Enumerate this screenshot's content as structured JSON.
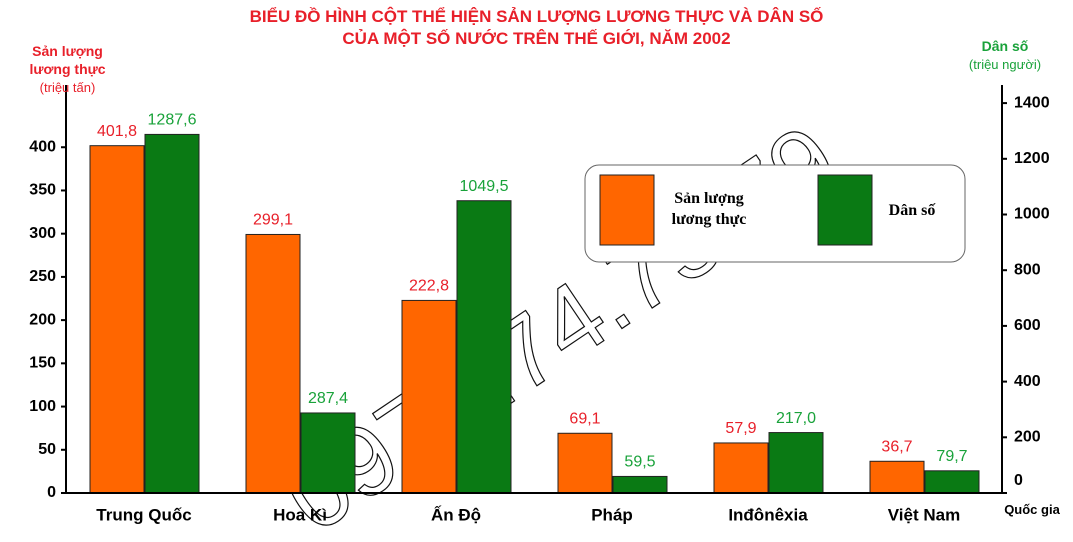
{
  "chart_data": {
    "type": "bar",
    "title": [
      "BIỂU ĐỒ HÌNH CỘT THỂ HIỆN SẢN LƯỢNG LƯƠNG THỰC VÀ DÂN SỐ",
      "CỦA MỘT SỐ NƯỚC TRÊN THẾ GIỚI, NĂM 2002"
    ],
    "y_label": "Sản lượng lương thực",
    "y_unit": "(triệu tấn)",
    "y2_label": "Dân số",
    "y2_unit": "(triệu người)",
    "x_label": "Quốc gia",
    "watermark": "0975.74.75.79",
    "categories": [
      "Trung Quốc",
      "Hoa Kì",
      "Ấn Độ",
      "Pháp",
      "Inđônêxia",
      "Việt Nam"
    ],
    "series": [
      {
        "name": "Sản lượng lương thực",
        "color": "#ff6600",
        "label_color": "#e8202a",
        "values": [
          401.8,
          299.1,
          222.8,
          69.1,
          57.9,
          36.7
        ],
        "value_labels": [
          "401,8",
          "299,1",
          "222,8",
          "69,1",
          "57,9",
          "36,7"
        ]
      },
      {
        "name": "Dân số",
        "color": "#0a7a14",
        "label_color": "#19a23a",
        "axis": "y2",
        "values": [
          1287.6,
          287.4,
          1049.5,
          59.5,
          217.0,
          79.7
        ],
        "value_labels": [
          "1287,6",
          "287,4",
          "1049,5",
          "59,5",
          "217,0",
          "79,7"
        ]
      }
    ],
    "ylim": [
      0,
      472
    ],
    "yticks": [
      0,
      50,
      100,
      150,
      200,
      250,
      300,
      350,
      400
    ],
    "y2lim": [
      0,
      1465
    ],
    "y2ticks": [
      0,
      200,
      400,
      600,
      800,
      1000,
      1200,
      1400
    ]
  }
}
